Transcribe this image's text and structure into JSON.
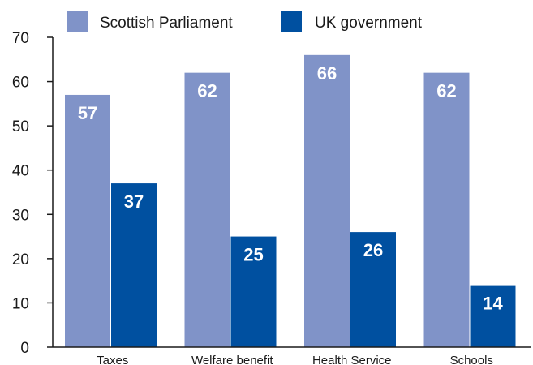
{
  "colors": {
    "series_1": "#8093c8",
    "series_2": "#0050a0",
    "axis": "#1a1a1a",
    "background": "#ffffff"
  },
  "chart_data": {
    "type": "bar",
    "categories": [
      "Taxes",
      "Welfare benefit",
      "Health Service",
      "Schools"
    ],
    "series": [
      {
        "name": "Scottish Parliament",
        "values": [
          57,
          62,
          66,
          62
        ]
      },
      {
        "name": "UK government",
        "values": [
          37,
          25,
          26,
          14
        ]
      }
    ],
    "y_ticks": [
      "0",
      "10",
      "20",
      "30",
      "40",
      "50",
      "60",
      "70"
    ],
    "ylim": [
      0,
      70
    ],
    "legend_position": "top",
    "grid": false,
    "data_labels": true
  }
}
